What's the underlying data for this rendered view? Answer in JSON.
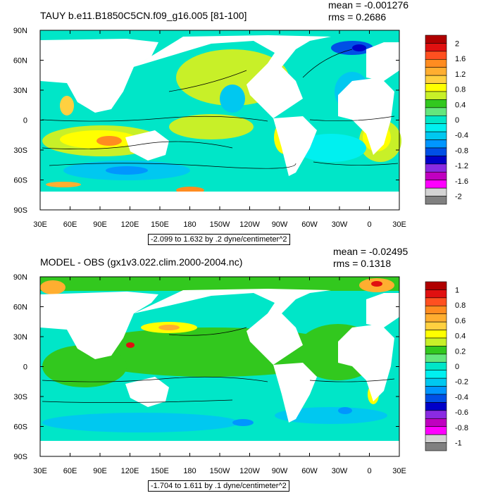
{
  "chart_data": [
    {
      "type": "heatmap",
      "title": "TAUY b.e11.B1850C5CN.f09_g16.005 [81-100]",
      "stats": {
        "mean": "mean = -0.001276",
        "rms": "rms = 0.2686"
      },
      "subtitle": "-2.099 to 1.632 by .2 dyne/centimeter^2",
      "x_ticks": [
        "30E",
        "60E",
        "90E",
        "120E",
        "150E",
        "180",
        "150W",
        "120W",
        "90W",
        "60W",
        "30W",
        "0",
        "30E"
      ],
      "y_ticks": [
        "90N",
        "60N",
        "30N",
        "0",
        "30S",
        "60S",
        "90S"
      ],
      "colorbar": {
        "labels": [
          "2",
          "1.6",
          "1.2",
          "0.8",
          "0.4",
          "0",
          "-0.4",
          "-0.8",
          "-1.2",
          "-1.6",
          "-2"
        ],
        "colors": [
          "#b00000",
          "#e01010",
          "#ff5020",
          "#ff8c20",
          "#ffae30",
          "#ffd040",
          "#ffff00",
          "#c8f028",
          "#32c81e",
          "#64e67d",
          "#00e6c8",
          "#00f0f0",
          "#00c8f0",
          "#0096ff",
          "#0050e6",
          "#0000c8",
          "#8a2be2",
          "#c000c0",
          "#ff00ff",
          "#d3d3d3",
          "#808080"
        ]
      },
      "value_range": [
        -2.099,
        1.632
      ]
    },
    {
      "type": "heatmap",
      "title": "MODEL - OBS (gx1v3.022.clim.2000-2004.nc)",
      "stats": {
        "mean": "mean = -0.02495",
        "rms": "rms = 0.1318"
      },
      "subtitle": "-1.704 to 1.611 by .1 dyne/centimeter^2",
      "x_ticks": [
        "30E",
        "60E",
        "90E",
        "120E",
        "150E",
        "180",
        "150W",
        "120W",
        "90W",
        "60W",
        "30W",
        "0",
        "30E"
      ],
      "y_ticks": [
        "90N",
        "60N",
        "30N",
        "0",
        "30S",
        "60S",
        "90S"
      ],
      "colorbar": {
        "labels": [
          "1",
          "0.8",
          "0.6",
          "0.4",
          "0.2",
          "0",
          "-0.2",
          "-0.4",
          "-0.6",
          "-0.8",
          "-1"
        ],
        "colors": [
          "#b00000",
          "#e01010",
          "#ff5020",
          "#ff8c20",
          "#ffae30",
          "#ffd040",
          "#ffff00",
          "#c8f028",
          "#32c81e",
          "#64e67d",
          "#00e6c8",
          "#00f0f0",
          "#00c8f0",
          "#0096ff",
          "#0050e6",
          "#0000c8",
          "#8a2be2",
          "#c000c0",
          "#ff00ff",
          "#d3d3d3",
          "#808080"
        ]
      },
      "value_range": [
        -1.704,
        1.611
      ]
    }
  ]
}
